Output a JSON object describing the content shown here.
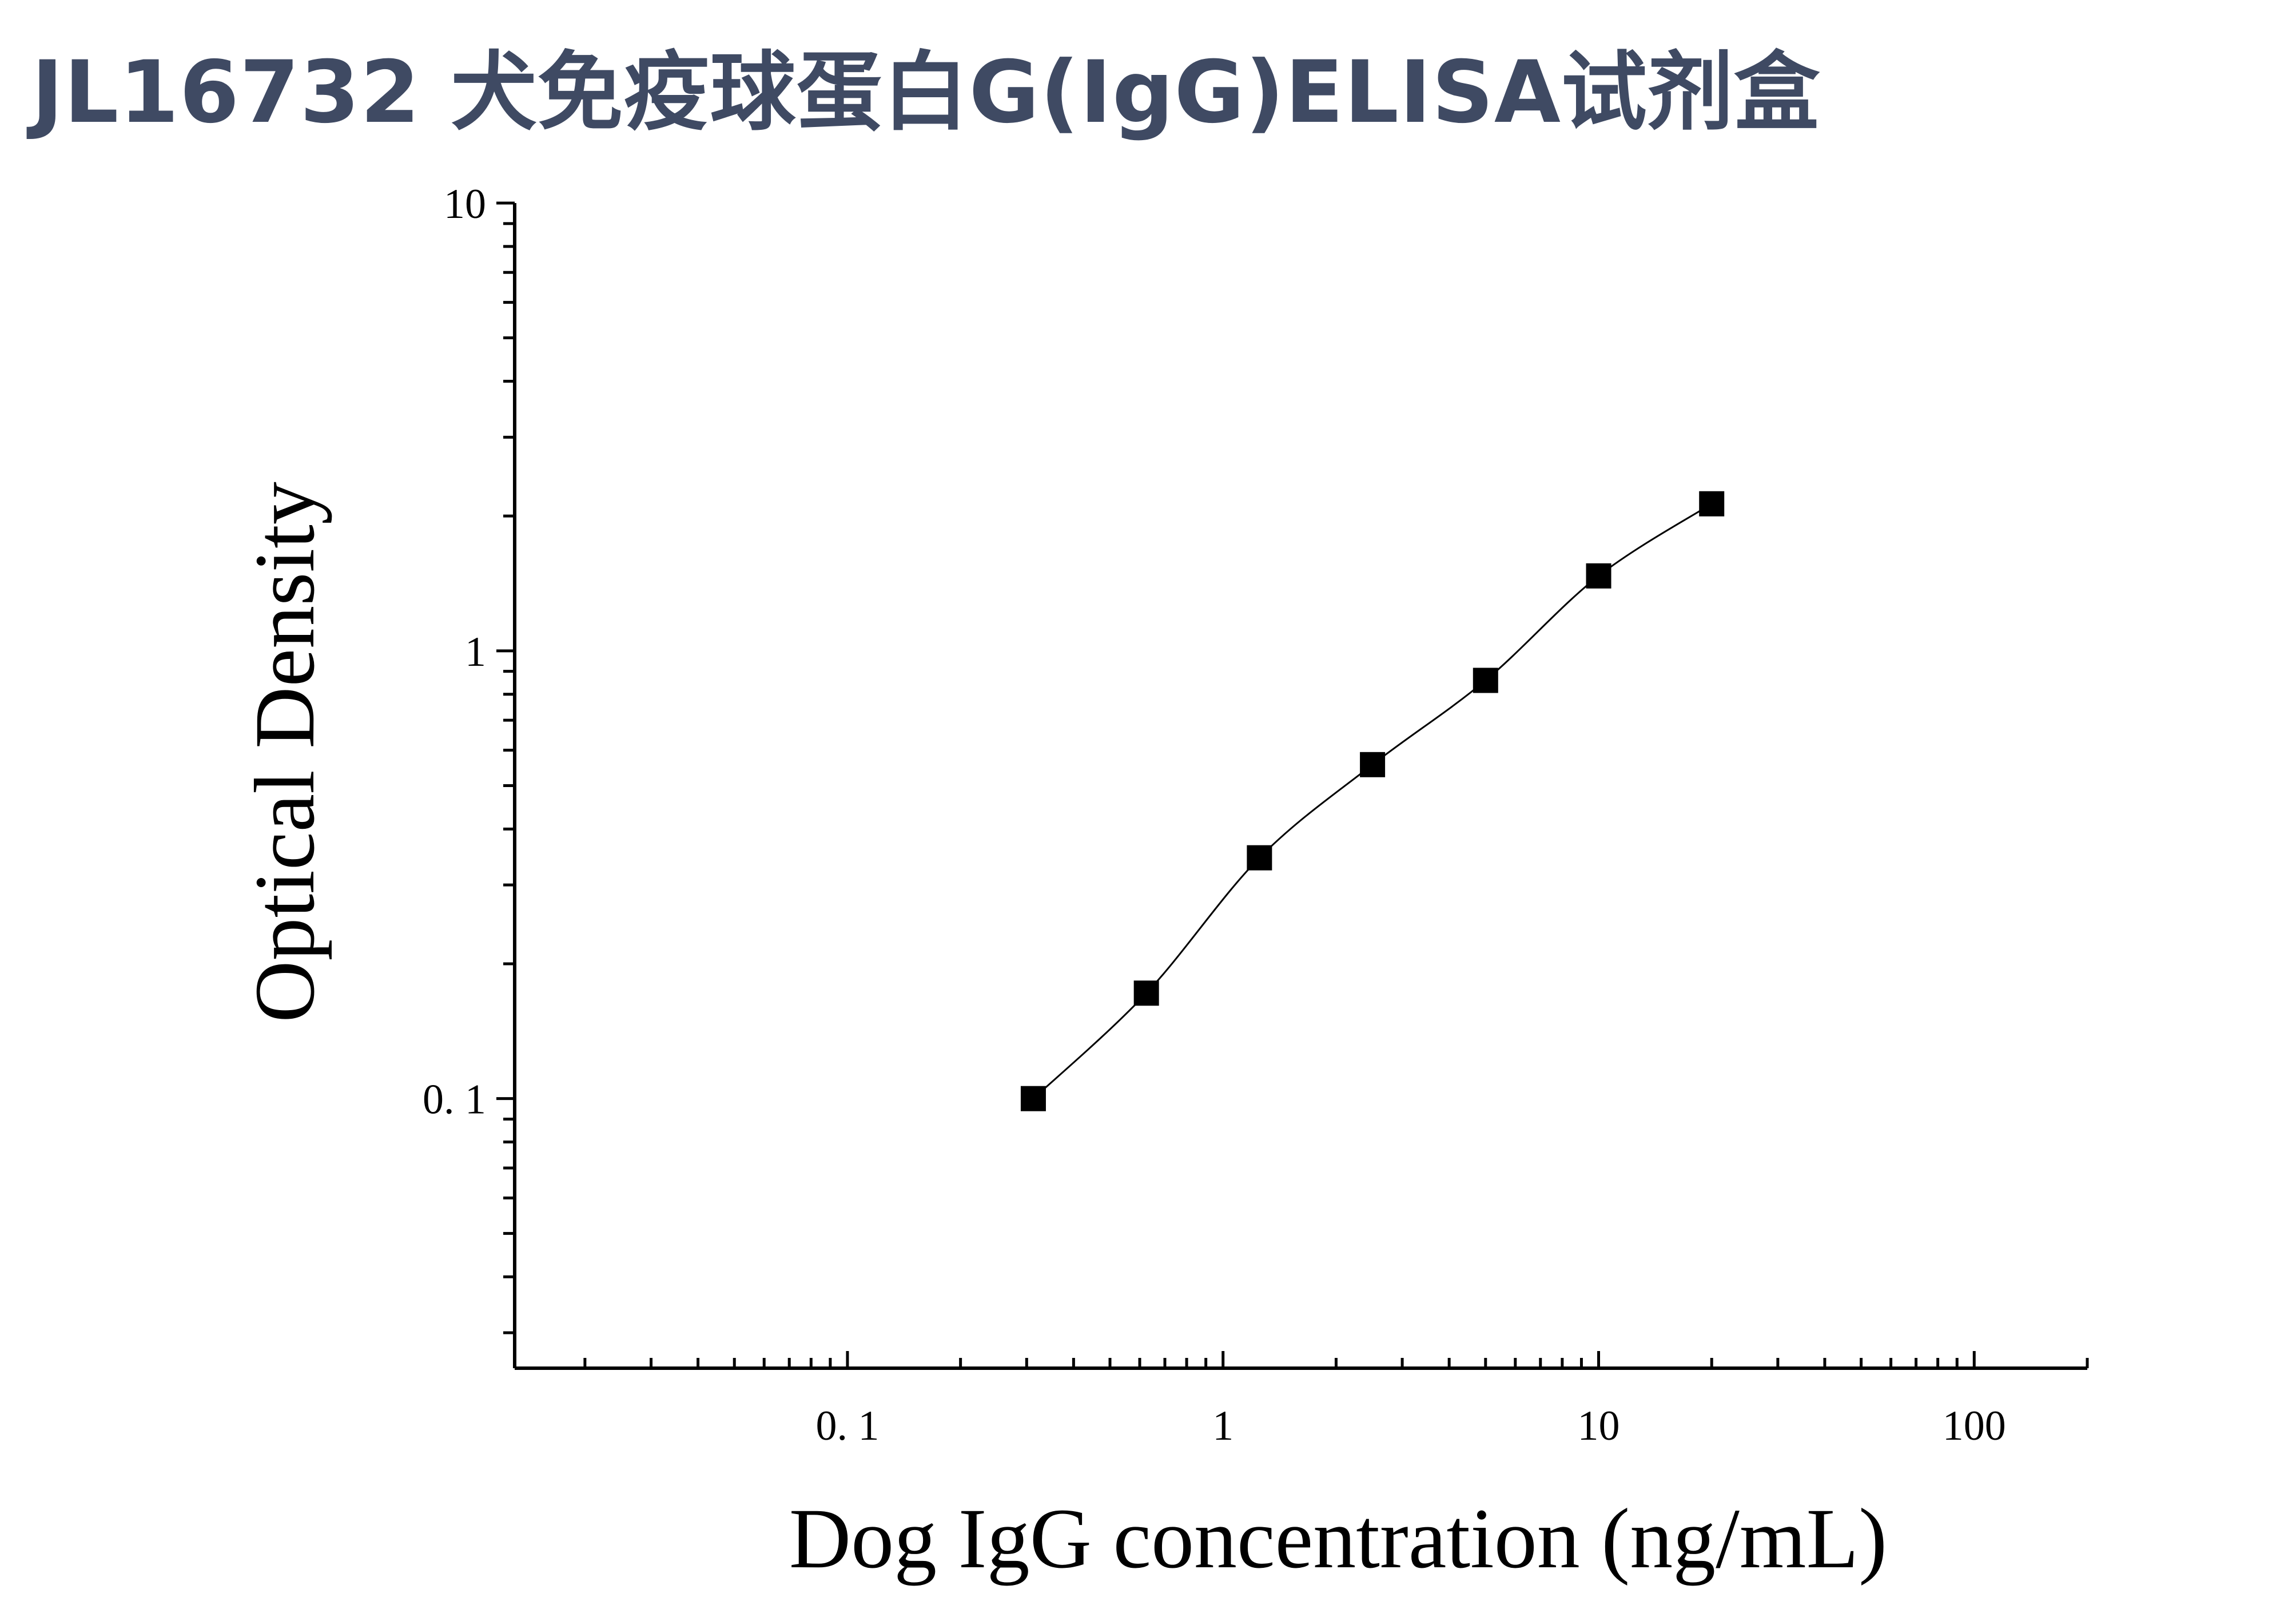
{
  "page": {
    "title": "JL16732 犬免疫球蛋白G(IgG)ELISA试剂盒"
  },
  "chart_data": {
    "type": "scatter",
    "x_scale": "log",
    "y_scale": "log",
    "xlabel": "Dog IgG concentration (ng/mL)",
    "ylabel": "Optical Density",
    "xlim": [
      0.013,
      200
    ],
    "ylim": [
      0.025,
      10
    ],
    "x_ticks": [
      {
        "value": 0.1,
        "label": "0. 1"
      },
      {
        "value": 1,
        "label": "1"
      },
      {
        "value": 10,
        "label": "10"
      },
      {
        "value": 100,
        "label": "100"
      }
    ],
    "y_ticks": [
      {
        "value": 0.1,
        "label": "0. 1"
      },
      {
        "value": 1,
        "label": "1"
      },
      {
        "value": 10,
        "label": "10"
      }
    ],
    "grid": false,
    "legend": "none",
    "series": [
      {
        "marker": "square",
        "color": "#000000",
        "x": [
          0.3125,
          0.625,
          1.25,
          2.5,
          5,
          10,
          20
        ],
        "y": [
          0.1,
          0.172,
          0.345,
          0.557,
          0.859,
          1.47,
          2.13
        ]
      }
    ],
    "fit_line": true
  }
}
